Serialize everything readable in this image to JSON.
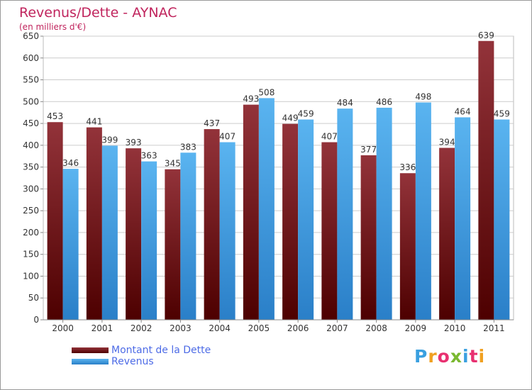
{
  "header": {
    "title": "Revenus/Dette - AYNAC",
    "subtitle": "(en milliers d'€)"
  },
  "legend": {
    "debt_label": "Montant de la Dette",
    "revenue_label": "Revenus"
  },
  "logo": {
    "text": "Proxiti",
    "colors": [
      "#3aa0e0",
      "#f0a020",
      "#e83070",
      "#7ab830",
      "#3aa0e0",
      "#e83070",
      "#f0a020"
    ]
  },
  "colors": {
    "debt_top": "#93333a",
    "debt_bottom": "#4d0000",
    "revenue_top": "#5ab4f0",
    "revenue_bottom": "#2a7fc8",
    "title": "#c0245d",
    "legend_text": "#4d6be6",
    "grid": "#cccccc"
  },
  "chart_data": {
    "type": "bar",
    "title": "Revenus/Dette - AYNAC",
    "subtitle": "(en milliers d'€)",
    "categories": [
      "2000",
      "2001",
      "2002",
      "2003",
      "2004",
      "2005",
      "2006",
      "2007",
      "2008",
      "2009",
      "2010",
      "2011"
    ],
    "series": [
      {
        "name": "Montant de la Dette",
        "values": [
          453,
          441,
          393,
          345,
          437,
          493,
          449,
          407,
          377,
          336,
          394,
          639
        ]
      },
      {
        "name": "Revenus",
        "values": [
          346,
          399,
          363,
          383,
          407,
          508,
          459,
          484,
          486,
          498,
          464,
          459
        ]
      }
    ],
    "ylim": [
      0,
      650
    ],
    "ytick_step": 50,
    "grid": true,
    "legend_position": "bottom-left"
  }
}
